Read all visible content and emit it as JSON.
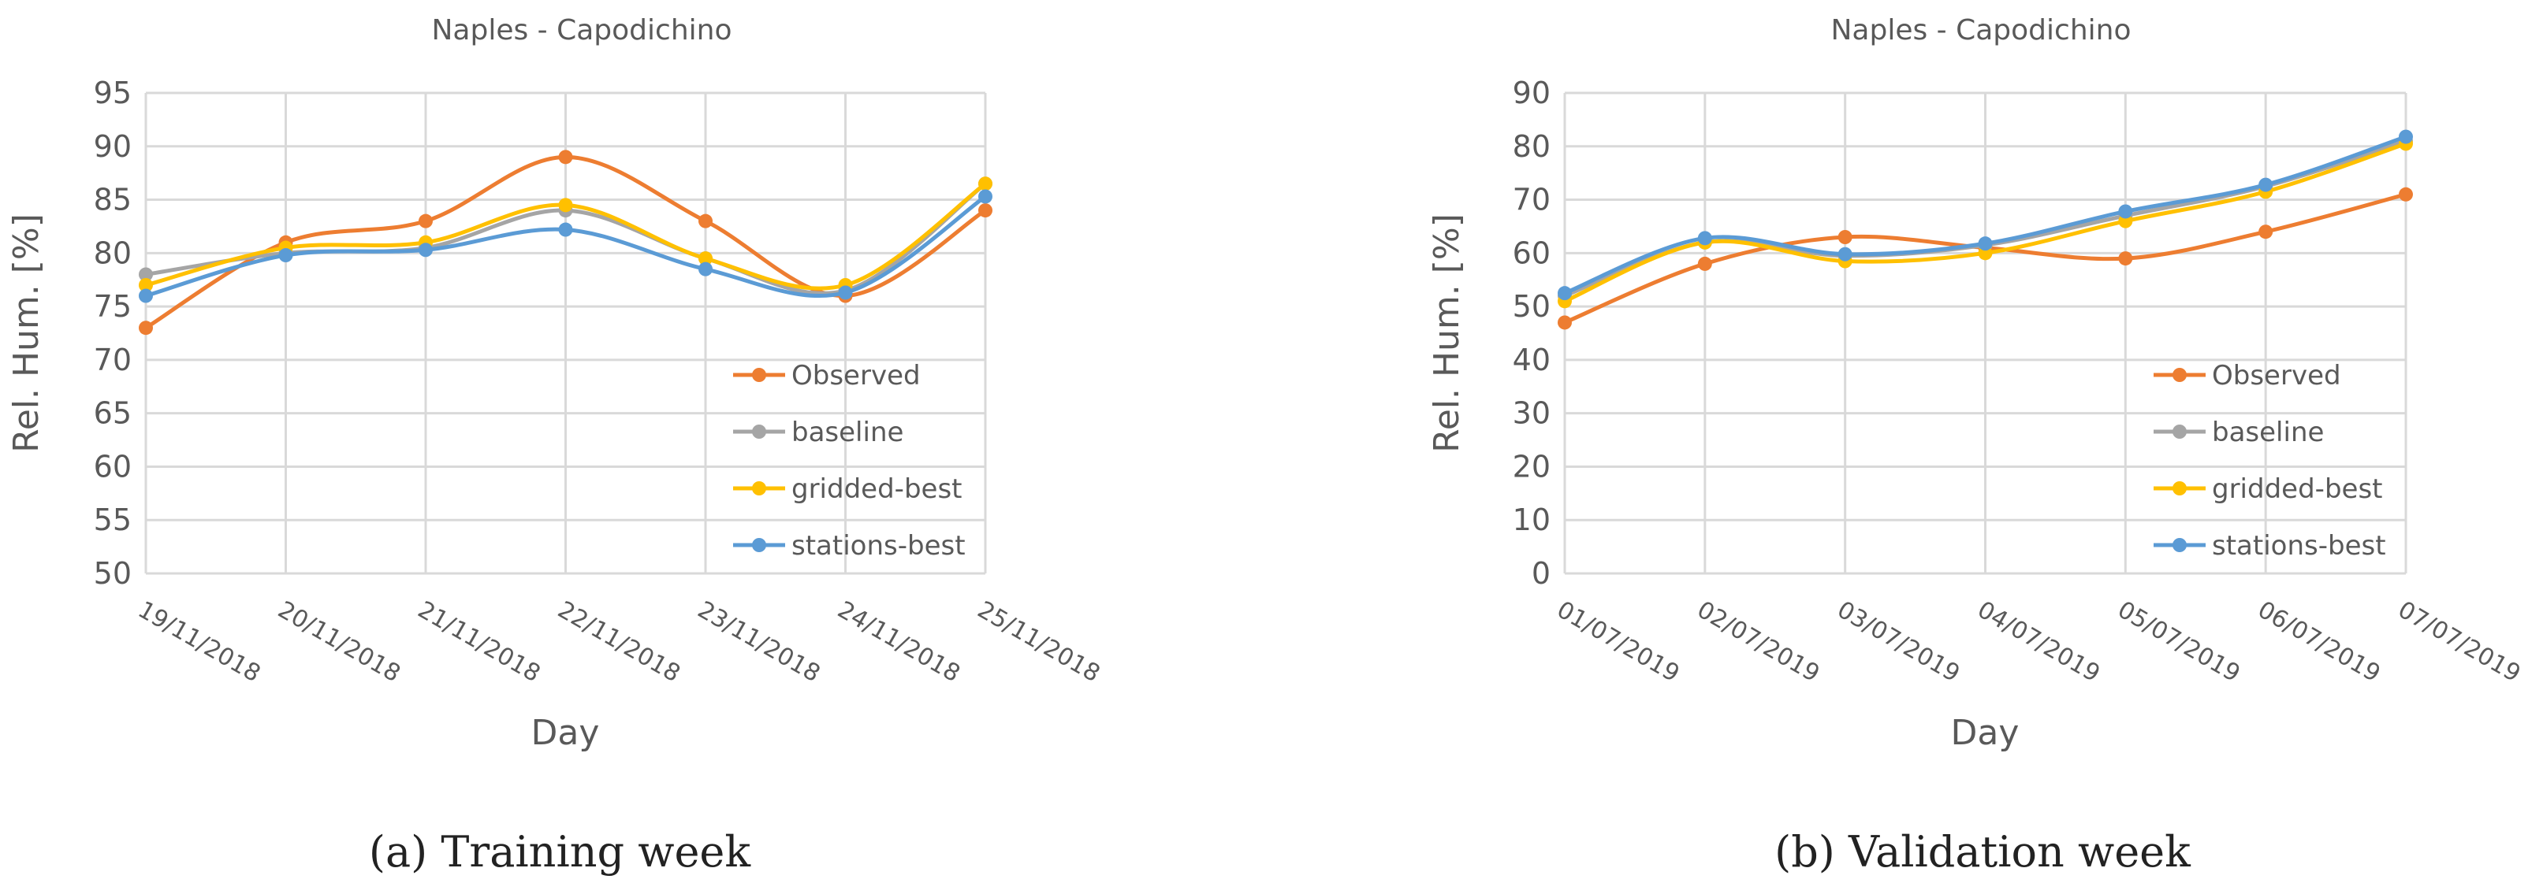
{
  "colors": {
    "observed": "#ED7D31",
    "baseline": "#A5A5A5",
    "gridded_best": "#FFC000",
    "stations_best": "#5B9BD5",
    "grid": "#D9D9D9"
  },
  "captions": [
    "(a)  Training week",
    "(b)  Validation week"
  ],
  "chart_data": [
    {
      "type": "line",
      "title": "Naples - Capodichino",
      "xlabel": "Day",
      "ylabel": "Rel. Hum. [%]",
      "ylim": [
        50,
        95
      ],
      "yticks": [
        50,
        55,
        60,
        65,
        70,
        75,
        80,
        85,
        90,
        95
      ],
      "grid": true,
      "smooth": true,
      "legend_position": "bottom-right",
      "categories": [
        "19/11/2018",
        "20/11/2018",
        "21/11/2018",
        "22/11/2018",
        "23/11/2018",
        "24/11/2018",
        "25/11/2018"
      ],
      "series": [
        {
          "name": "Observed",
          "color_key": "observed",
          "values": [
            73,
            81,
            83,
            89,
            83,
            76,
            84
          ]
        },
        {
          "name": "baseline",
          "color_key": "baseline",
          "values": [
            78,
            80,
            80.5,
            84,
            79.5,
            76.5,
            86.5
          ]
        },
        {
          "name": "gridded-best",
          "color_key": "gridded_best",
          "values": [
            77,
            80.5,
            81,
            84.5,
            79.5,
            77,
            86.5
          ]
        },
        {
          "name": "stations-best",
          "color_key": "stations_best",
          "values": [
            76,
            79.8,
            80.3,
            82.2,
            78.5,
            76.3,
            85.3
          ]
        }
      ]
    },
    {
      "type": "line",
      "title": "Naples - Capodichino",
      "xlabel": "Day",
      "ylabel": "Rel. Hum. [%]",
      "ylim": [
        0,
        90
      ],
      "yticks": [
        0,
        10,
        20,
        30,
        40,
        50,
        60,
        70,
        80,
        90
      ],
      "grid": true,
      "smooth": true,
      "legend_position": "bottom-right",
      "categories": [
        "01/07/2019",
        "02/07/2019",
        "03/07/2019",
        "04/07/2019",
        "05/07/2019",
        "06/07/2019",
        "07/07/2019"
      ],
      "series": [
        {
          "name": "Observed",
          "color_key": "observed",
          "values": [
            47,
            58,
            63,
            61,
            59,
            64,
            71
          ]
        },
        {
          "name": "baseline",
          "color_key": "baseline",
          "values": [
            52,
            62,
            59.5,
            61.5,
            67,
            72.5,
            81
          ]
        },
        {
          "name": "gridded-best",
          "color_key": "gridded_best",
          "values": [
            51,
            62,
            58.5,
            60,
            66,
            71.5,
            80.5
          ]
        },
        {
          "name": "stations-best",
          "color_key": "stations_best",
          "values": [
            52.5,
            62.8,
            59.8,
            61.8,
            67.8,
            72.8,
            81.8
          ]
        }
      ]
    }
  ]
}
